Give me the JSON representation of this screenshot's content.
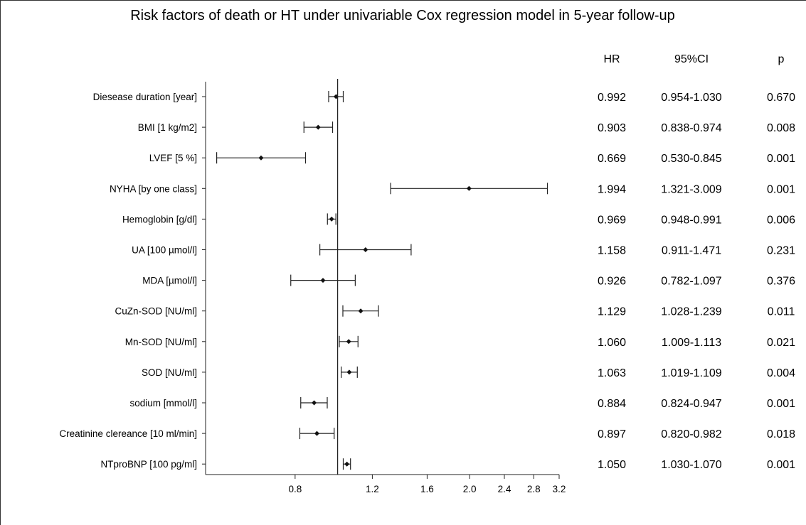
{
  "chart_data": {
    "type": "forest",
    "title": "Risk factors of death or HT under univariable Cox regression model in 5-year follow-up",
    "columns": {
      "hr": "HR",
      "ci": "95%CI",
      "p": "p"
    },
    "x_scale": "log",
    "x_ticks": [
      "0.8",
      "1.2",
      "1.6",
      "2.0",
      "2.4",
      "2.8",
      "3.2"
    ],
    "reference_line": 1.0,
    "rows": [
      {
        "label": "Diesease duration [year]",
        "hr": 0.992,
        "lo": 0.954,
        "hi": 1.03,
        "hr_text": "0.992",
        "ci_text": "0.954-1.030",
        "p_text": "0.670"
      },
      {
        "label": "BMI  [1 kg/m2]",
        "hr": 0.903,
        "lo": 0.838,
        "hi": 0.974,
        "hr_text": "0.903",
        "ci_text": "0.838-0.974",
        "p_text": "0.008"
      },
      {
        "label": "LVEF [5 %]",
        "hr": 0.669,
        "lo": 0.53,
        "hi": 0.845,
        "hr_text": "0.669",
        "ci_text": "0.530-0.845",
        "p_text": "0.001"
      },
      {
        "label": "NYHA [by one class]",
        "hr": 1.994,
        "lo": 1.321,
        "hi": 3.009,
        "hr_text": "1.994",
        "ci_text": "1.321-3.009",
        "p_text": "0.001"
      },
      {
        "label": "Hemoglobin [g/dl]",
        "hr": 0.969,
        "lo": 0.948,
        "hi": 0.991,
        "hr_text": "0.969",
        "ci_text": "0.948-0.991",
        "p_text": "0.006"
      },
      {
        "label": "UA [100 µmol/l]",
        "hr": 1.158,
        "lo": 0.911,
        "hi": 1.471,
        "hr_text": "1.158",
        "ci_text": "0.911-1.471",
        "p_text": "0.231"
      },
      {
        "label": "MDA [µmol/l]",
        "hr": 0.926,
        "lo": 0.782,
        "hi": 1.097,
        "hr_text": "0.926",
        "ci_text": "0.782-1.097",
        "p_text": "0.376"
      },
      {
        "label": "CuZn-SOD [NU/ml]",
        "hr": 1.129,
        "lo": 1.028,
        "hi": 1.239,
        "hr_text": "1.129",
        "ci_text": "1.028-1.239",
        "p_text": "0.011"
      },
      {
        "label": "Mn-SOD [NU/ml]",
        "hr": 1.06,
        "lo": 1.009,
        "hi": 1.113,
        "hr_text": "1.060",
        "ci_text": "1.009-1.113",
        "p_text": "0.021"
      },
      {
        "label": "SOD [NU/ml]",
        "hr": 1.063,
        "lo": 1.019,
        "hi": 1.109,
        "hr_text": "1.063",
        "ci_text": "1.019-1.109",
        "p_text": "0.004"
      },
      {
        "label": "sodium [mmol/l]",
        "hr": 0.884,
        "lo": 0.824,
        "hi": 0.947,
        "hr_text": "0.884",
        "ci_text": "0.824-0.947",
        "p_text": "0.001"
      },
      {
        "label": "Creatinine clereance [10 ml/min]",
        "hr": 0.897,
        "lo": 0.82,
        "hi": 0.982,
        "hr_text": "0.897",
        "ci_text": "0.820-0.982",
        "p_text": "0.018"
      },
      {
        "label": "NTproBNP [100 pg/ml]",
        "hr": 1.05,
        "lo": 1.03,
        "hi": 1.07,
        "hr_text": "1.050",
        "ci_text": "1.030-1.070",
        "p_text": "0.001"
      }
    ]
  }
}
